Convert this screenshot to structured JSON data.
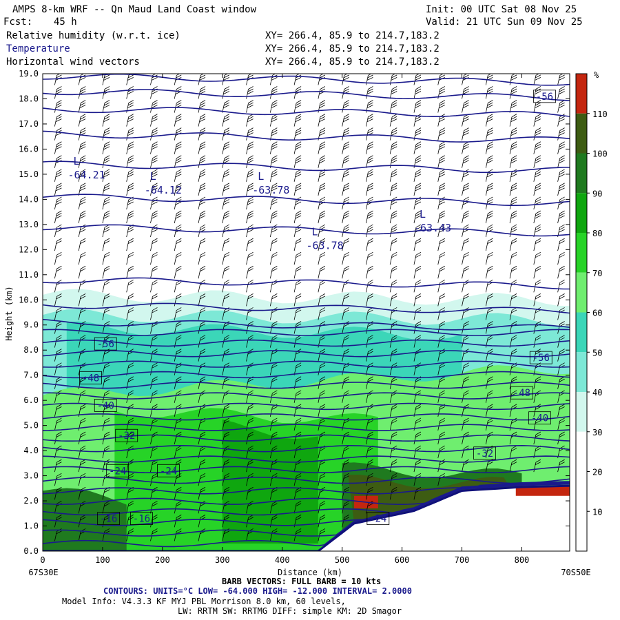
{
  "header": {
    "title": "AMPS 8-km WRF -- Qn Maud Land Coast window",
    "init": "Init: 00 UTC Sat 08 Nov 25",
    "fcst_label": "Fcst:",
    "fcst_value": "45 h",
    "valid": "Valid: 21 UTC Sun 09 Nov 25",
    "fields": [
      {
        "name": "Relative humidity (w.r.t. ice)",
        "xy": "XY= 266.4, 85.9 to 214.7,183.2"
      },
      {
        "name": "Temperature",
        "xy": "XY= 266.4, 85.9 to 214.7,183.2"
      },
      {
        "name": "Horizontal wind vectors",
        "xy": "XY= 266.4, 85.9 to 214.7,183.2"
      }
    ]
  },
  "chart_data": {
    "type": "heatmap",
    "xlabel": "Distance (km)",
    "ylabel": "Height (km)",
    "xlim": [
      0,
      880
    ],
    "ylim": [
      0,
      19
    ],
    "x_ticks": [
      0,
      100,
      200,
      300,
      400,
      500,
      600,
      700,
      800
    ],
    "y_ticks": [
      "0.0",
      "1.0",
      "2.0",
      "3.0",
      "4.0",
      "5.0",
      "6.0",
      "7.0",
      "8.0",
      "9.0",
      "10.0",
      "11.0",
      "12.0",
      "13.0",
      "14.0",
      "15.0",
      "16.0",
      "17.0",
      "18.0",
      "19.0"
    ],
    "left_endpoint": "67S30E",
    "right_endpoint": "70S50E",
    "colorbar": {
      "unit": "%",
      "levels": [
        10,
        20,
        30,
        40,
        50,
        60,
        70,
        80,
        90,
        100,
        110
      ],
      "colors": [
        "#ffffff",
        "#ffffff",
        "#ffffff",
        "#d2f7ee",
        "#7de8d6",
        "#3bd6b8",
        "#6fee6f",
        "#27d327",
        "#0fa60f",
        "#1f7a1f",
        "#3d5c12",
        "#c4260f"
      ]
    },
    "temperature_labels": [
      {
        "text": "-56",
        "x": 838,
        "y": 18.1
      },
      {
        "text": "-56",
        "x": 105,
        "y": 8.25
      },
      {
        "text": "-56",
        "x": 832,
        "y": 7.7
      },
      {
        "text": "-48",
        "x": 80,
        "y": 6.9
      },
      {
        "text": "-48",
        "x": 800,
        "y": 6.3
      },
      {
        "text": "-40",
        "x": 105,
        "y": 5.8
      },
      {
        "text": "-40",
        "x": 830,
        "y": 5.3
      },
      {
        "text": "-32",
        "x": 140,
        "y": 4.6
      },
      {
        "text": "-32",
        "x": 738,
        "y": 3.9
      },
      {
        "text": "-24",
        "x": 125,
        "y": 3.2
      },
      {
        "text": "-24",
        "x": 210,
        "y": 3.2
      },
      {
        "text": "-24",
        "x": 560,
        "y": 1.3
      },
      {
        "text": "-16",
        "x": 110,
        "y": 1.3
      },
      {
        "text": "-16",
        "x": 165,
        "y": 1.3
      }
    ],
    "lows": [
      {
        "label": "L",
        "value": "-64.21",
        "x": 42,
        "y": 15.1
      },
      {
        "label": "L",
        "value": "-64.12",
        "x": 170,
        "y": 14.5
      },
      {
        "label": "L",
        "value": "-63.78",
        "x": 350,
        "y": 14.5
      },
      {
        "label": "L",
        "value": "-63.78",
        "x": 440,
        "y": 12.3
      },
      {
        "label": "L",
        "value": "-63.43",
        "x": 620,
        "y": 13.0
      }
    ]
  },
  "footer": {
    "barb": "BARB VECTORS: FULL BARB = 10 kts",
    "contours": "CONTOURS: UNITS=°C LOW= -64.000 HIGH= -12.000 INTERVAL= 2.0000",
    "model_info": "Model Info: V4.3.3 KF MYJ PBL Morrison 8.0 km, 60 levels,",
    "physics": "LW: RRTM SW: RRTMG DIFF: simple KM: 2D Smagor"
  },
  "colors": {
    "contour": "#1a1a8c",
    "text": "#000000"
  }
}
